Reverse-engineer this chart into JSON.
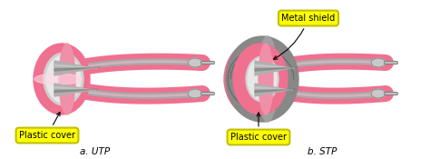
{
  "background_color": "#ffffff",
  "pink": "#F07090",
  "pink_mid": "#F090A8",
  "pink_light": "#F8C0D0",
  "pink_highlight": "#FFD8E4",
  "gray_wire": "#A8A8A8",
  "gray_light": "#C8C8C8",
  "gray_dark": "#707070",
  "gray_cone": "#B0B0B0",
  "metal_gray": "#888888",
  "metal_dark": "#606060",
  "metal_light": "#AAAAAA",
  "yellow": "#FFFF00",
  "yellow_border": "#C0C000",
  "black": "#000000",
  "label_plastic_utp": "Plastic cover",
  "label_plastic_stp": "Plastic cover",
  "label_metal": "Metal shield",
  "label_a": "a. UTP",
  "label_b": "b. STP",
  "fig_width": 4.74,
  "fig_height": 1.75,
  "dpi": 100
}
